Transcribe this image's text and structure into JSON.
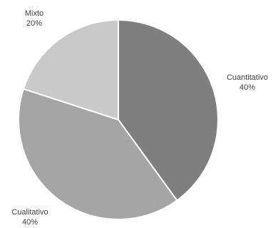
{
  "chart_data": {
    "type": "pie",
    "title": "",
    "slices": [
      {
        "label": "Cuantitativo",
        "value": 40,
        "value_label": "40%",
        "color": "#7f7f7f"
      },
      {
        "label": "Cualitativo",
        "value": 40,
        "value_label": "40%",
        "color": "#a5a5a5"
      },
      {
        "label": "Mixto",
        "value": 20,
        "value_label": "20%",
        "color": "#c9c9c9"
      }
    ],
    "start_angle_deg": 0,
    "direction": "clockwise",
    "slice_border_color": "#ffffff",
    "label_color": "#404040",
    "legend": "none"
  }
}
